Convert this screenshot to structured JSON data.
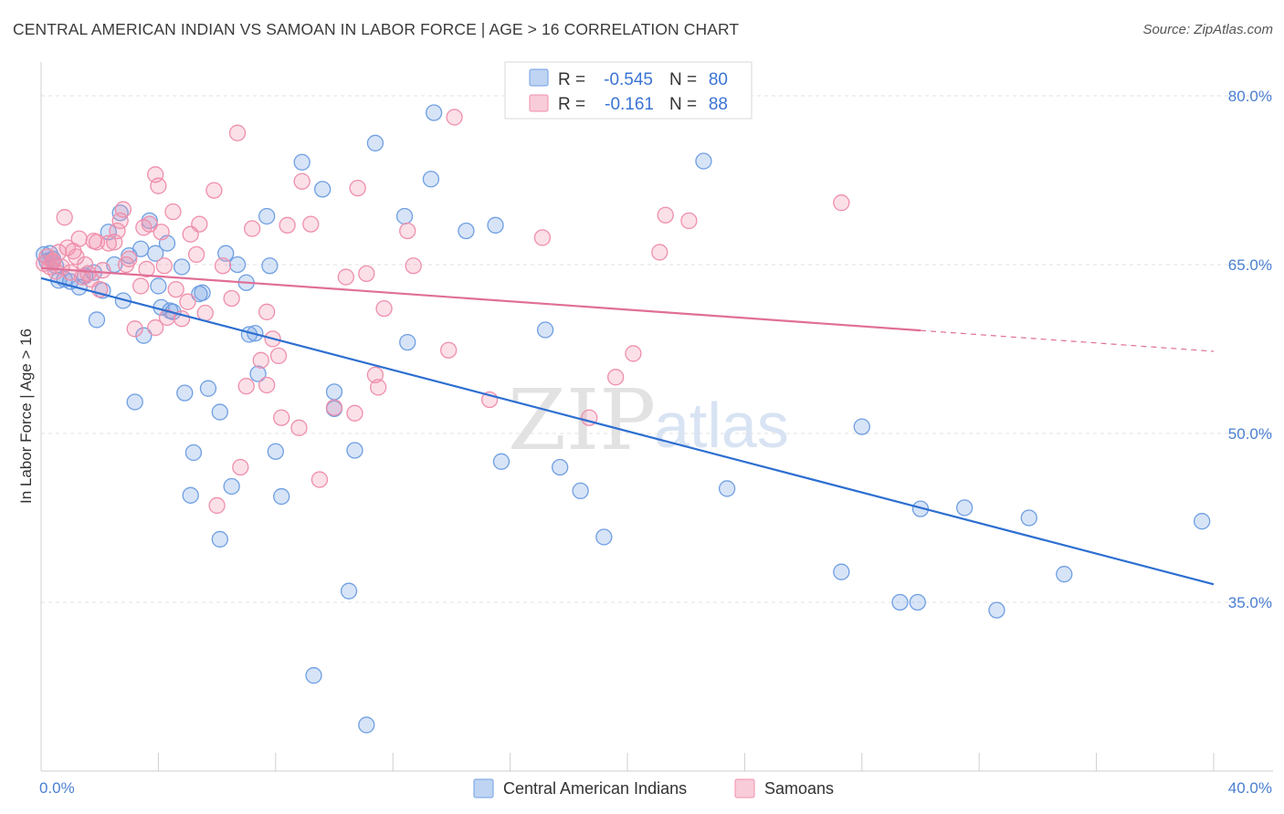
{
  "header": {
    "title": "CENTRAL AMERICAN INDIAN VS SAMOAN IN LABOR FORCE | AGE > 16 CORRELATION CHART",
    "source": "Source: ZipAtlas.com"
  },
  "watermark": {
    "zip": "ZIP",
    "atlas": "atlas"
  },
  "stats": {
    "r_label": "R =",
    "n_label": "N =",
    "rows": [
      {
        "r": "-0.545",
        "n": "80",
        "color": "#6f9fe3"
      },
      {
        "r": "-0.161",
        "n": "88",
        "color": "#ef8fab"
      }
    ]
  },
  "legend": {
    "items": [
      {
        "label": "Central American Indians",
        "color": "#6f9fe3"
      },
      {
        "label": "Samoans",
        "color": "#ef8fab"
      }
    ]
  },
  "chart_data": {
    "type": "scatter",
    "xlabel": "",
    "ylabel": "In Labor Force | Age > 16",
    "xlim": [
      0,
      40
    ],
    "ylim": [
      20,
      83
    ],
    "x_tick_labels": [
      "0.0%",
      "40.0%"
    ],
    "y_ticks": [
      35,
      50,
      65,
      80
    ],
    "y_tick_labels": [
      "35.0%",
      "50.0%",
      "65.0%",
      "80.0%"
    ],
    "grid": "horizontal dashed",
    "legend_position": "bottom-center",
    "series": [
      {
        "name": "Central American Indians",
        "color": "#6f9fe3",
        "line_color": "#2d6fd1",
        "trend": {
          "x": [
            0,
            40
          ],
          "y": [
            63.8,
            36.6
          ],
          "dashed_from": null
        },
        "points": [
          [
            0.2,
            65.3
          ],
          [
            0.3,
            66.0
          ],
          [
            0.4,
            65.5
          ],
          [
            0.5,
            64.9
          ],
          [
            0.6,
            63.6
          ],
          [
            0.8,
            63.7
          ],
          [
            1.0,
            63.5
          ],
          [
            1.3,
            63.0
          ],
          [
            1.5,
            64.0
          ],
          [
            1.8,
            64.3
          ],
          [
            1.9,
            60.1
          ],
          [
            2.1,
            62.7
          ],
          [
            2.3,
            67.9
          ],
          [
            2.5,
            65.0
          ],
          [
            2.7,
            69.6
          ],
          [
            2.8,
            61.8
          ],
          [
            3.0,
            65.8
          ],
          [
            3.2,
            52.8
          ],
          [
            3.4,
            66.4
          ],
          [
            3.5,
            58.7
          ],
          [
            3.7,
            68.9
          ],
          [
            3.9,
            66.0
          ],
          [
            4.0,
            63.1
          ],
          [
            4.1,
            61.2
          ],
          [
            4.3,
            66.9
          ],
          [
            4.4,
            60.9
          ],
          [
            4.5,
            60.8
          ],
          [
            4.8,
            64.8
          ],
          [
            4.9,
            53.6
          ],
          [
            5.1,
            44.5
          ],
          [
            5.2,
            48.3
          ],
          [
            5.4,
            62.4
          ],
          [
            5.5,
            62.5
          ],
          [
            5.7,
            54.0
          ],
          [
            6.1,
            51.9
          ],
          [
            6.1,
            40.6
          ],
          [
            6.3,
            66.0
          ],
          [
            6.5,
            45.3
          ],
          [
            6.7,
            65.0
          ],
          [
            7.0,
            63.4
          ],
          [
            7.1,
            58.8
          ],
          [
            7.3,
            58.9
          ],
          [
            7.4,
            55.3
          ],
          [
            7.7,
            69.3
          ],
          [
            7.8,
            64.9
          ],
          [
            8.0,
            48.4
          ],
          [
            8.2,
            44.4
          ],
          [
            8.9,
            74.1
          ],
          [
            9.3,
            28.5
          ],
          [
            9.6,
            71.7
          ],
          [
            10.0,
            53.7
          ],
          [
            10.0,
            52.2
          ],
          [
            10.5,
            36.0
          ],
          [
            10.7,
            48.5
          ],
          [
            11.1,
            24.1
          ],
          [
            11.4,
            75.8
          ],
          [
            12.4,
            69.3
          ],
          [
            12.5,
            58.1
          ],
          [
            13.3,
            72.6
          ],
          [
            13.4,
            78.5
          ],
          [
            14.5,
            68.0
          ],
          [
            15.5,
            68.5
          ],
          [
            15.7,
            47.5
          ],
          [
            17.2,
            59.2
          ],
          [
            17.7,
            47.0
          ],
          [
            18.4,
            44.9
          ],
          [
            19.2,
            40.8
          ],
          [
            22.6,
            74.2
          ],
          [
            23.4,
            45.1
          ],
          [
            27.3,
            37.7
          ],
          [
            28.0,
            50.6
          ],
          [
            29.3,
            35.0
          ],
          [
            29.9,
            35.0
          ],
          [
            30.0,
            43.3
          ],
          [
            31.5,
            43.4
          ],
          [
            32.6,
            34.3
          ],
          [
            33.7,
            42.5
          ],
          [
            34.9,
            37.5
          ],
          [
            39.6,
            42.2
          ],
          [
            0.1,
            65.9
          ]
        ]
      },
      {
        "name": "Samoans",
        "color": "#ef8fab",
        "line_color": "#e06f96",
        "trend": {
          "x": [
            0,
            40
          ],
          "y": [
            64.7,
            57.3
          ],
          "dashed_from": 30.0
        },
        "points": [
          [
            0.1,
            65.1
          ],
          [
            0.2,
            65.7
          ],
          [
            0.3,
            64.8
          ],
          [
            0.4,
            65.3
          ],
          [
            0.5,
            64.4
          ],
          [
            0.6,
            66.1
          ],
          [
            0.7,
            64.8
          ],
          [
            0.8,
            69.2
          ],
          [
            0.9,
            66.5
          ],
          [
            1.0,
            64.3
          ],
          [
            1.2,
            65.7
          ],
          [
            1.3,
            67.3
          ],
          [
            1.4,
            63.9
          ],
          [
            1.5,
            65.0
          ],
          [
            1.6,
            64.2
          ],
          [
            1.7,
            63.7
          ],
          [
            1.8,
            67.1
          ],
          [
            1.9,
            67.0
          ],
          [
            2.0,
            62.8
          ],
          [
            2.1,
            64.5
          ],
          [
            2.3,
            66.9
          ],
          [
            2.5,
            67.0
          ],
          [
            2.7,
            68.9
          ],
          [
            2.8,
            69.9
          ],
          [
            2.9,
            65.0
          ],
          [
            3.0,
            65.5
          ],
          [
            3.2,
            59.3
          ],
          [
            3.4,
            63.1
          ],
          [
            3.5,
            68.3
          ],
          [
            3.6,
            64.6
          ],
          [
            3.7,
            68.6
          ],
          [
            3.9,
            59.4
          ],
          [
            3.9,
            73.0
          ],
          [
            4.0,
            72.0
          ],
          [
            4.1,
            67.9
          ],
          [
            4.2,
            64.9
          ],
          [
            4.3,
            60.3
          ],
          [
            4.5,
            69.7
          ],
          [
            4.6,
            62.8
          ],
          [
            4.8,
            60.2
          ],
          [
            5.0,
            61.7
          ],
          [
            5.1,
            67.7
          ],
          [
            5.3,
            65.9
          ],
          [
            5.4,
            68.6
          ],
          [
            5.6,
            60.7
          ],
          [
            5.9,
            71.6
          ],
          [
            6.0,
            43.6
          ],
          [
            6.2,
            64.9
          ],
          [
            6.5,
            62.0
          ],
          [
            6.7,
            76.7
          ],
          [
            6.8,
            47.0
          ],
          [
            7.0,
            54.2
          ],
          [
            7.2,
            68.2
          ],
          [
            7.5,
            56.5
          ],
          [
            7.7,
            54.3
          ],
          [
            7.7,
            60.8
          ],
          [
            7.9,
            58.4
          ],
          [
            8.1,
            56.9
          ],
          [
            8.2,
            51.4
          ],
          [
            8.4,
            68.5
          ],
          [
            8.8,
            50.5
          ],
          [
            8.9,
            72.4
          ],
          [
            9.2,
            68.6
          ],
          [
            9.5,
            45.9
          ],
          [
            10.0,
            52.3
          ],
          [
            10.4,
            63.9
          ],
          [
            10.7,
            51.8
          ],
          [
            10.8,
            71.8
          ],
          [
            11.1,
            64.2
          ],
          [
            11.4,
            55.2
          ],
          [
            11.5,
            54.1
          ],
          [
            11.7,
            61.1
          ],
          [
            12.5,
            68.0
          ],
          [
            12.7,
            64.9
          ],
          [
            13.9,
            57.4
          ],
          [
            14.1,
            78.1
          ],
          [
            15.3,
            53.0
          ],
          [
            17.1,
            67.4
          ],
          [
            18.7,
            51.4
          ],
          [
            19.6,
            55.0
          ],
          [
            20.2,
            57.1
          ],
          [
            21.1,
            66.1
          ],
          [
            21.3,
            69.4
          ],
          [
            22.1,
            68.9
          ],
          [
            27.3,
            70.5
          ],
          [
            0.4,
            65.2
          ],
          [
            1.1,
            66.2
          ],
          [
            2.6,
            68.0
          ]
        ]
      }
    ]
  }
}
